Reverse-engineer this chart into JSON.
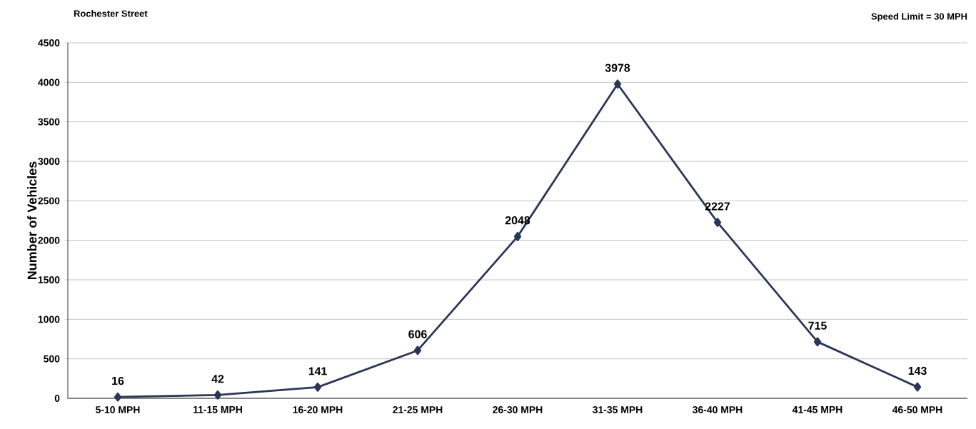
{
  "chart_data": {
    "type": "line",
    "title": "Rochester Street",
    "ylabel": "Number of Vehicles",
    "annotations": [
      "Speed Limit = 30 MPH"
    ],
    "categories": [
      "5-10 MPH",
      "11-15 MPH",
      "16-20 MPH",
      "21-25 MPH",
      "26-30 MPH",
      "31-35 MPH",
      "36-40 MPH",
      "41-45 MPH",
      "46-50 MPH"
    ],
    "values": [
      16,
      42,
      141,
      606,
      2048,
      3978,
      2227,
      715,
      143
    ],
    "color": "#2b3656",
    "marker": "diamond",
    "line_style": "solid",
    "ylim": [
      0,
      4500
    ],
    "yticks": [
      0,
      500,
      1000,
      1500,
      2000,
      2500,
      3000,
      3500,
      4000,
      4500
    ],
    "grid": "y",
    "data_labels": true
  }
}
